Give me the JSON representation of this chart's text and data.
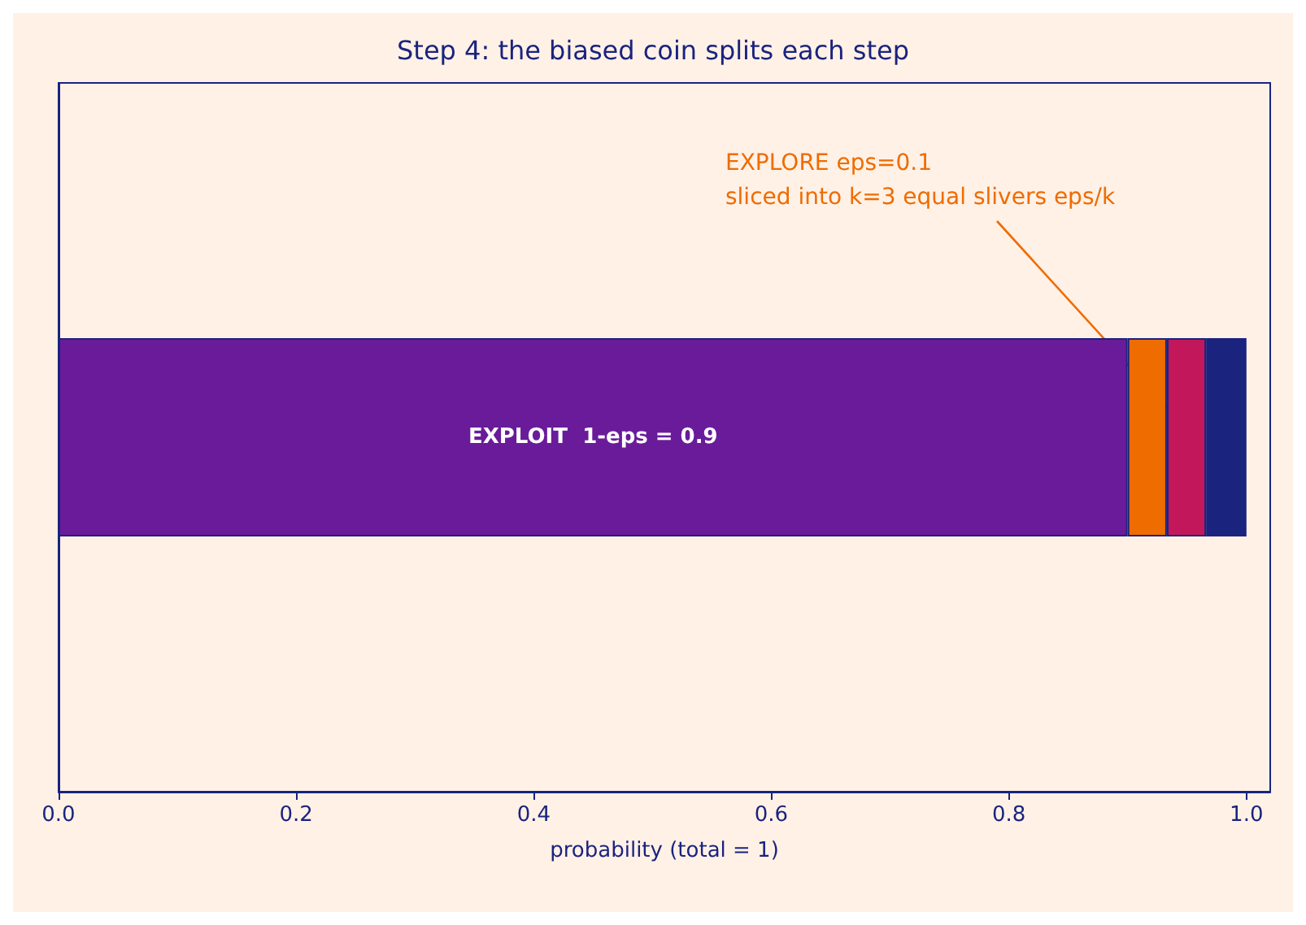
{
  "chart_data": {
    "type": "bar",
    "title": "Step 4: the biased coin splits each step",
    "xlabel": "probability (total = 1)",
    "orientation": "horizontal",
    "stacked": true,
    "categories": [
      null
    ],
    "series": [
      {
        "color": "#6a1b9a",
        "values": [
          0.9
        ],
        "value_labels": [
          "EXPLOIT  1-eps = 0.9"
        ]
      },
      {
        "color": "#ef6c00",
        "values": [
          0.033
        ]
      },
      {
        "color": "#c2185b",
        "values": [
          0.033
        ]
      },
      {
        "color": "#1a237e",
        "values": [
          0.034
        ]
      }
    ],
    "xlim": [
      0,
      1.02
    ],
    "xticks": [
      {
        "value": 0,
        "label": "0.0"
      },
      {
        "value": 0.2,
        "label": "0.2"
      },
      {
        "value": 0.4,
        "label": "0.4"
      },
      {
        "value": 0.6,
        "label": "0.6"
      },
      {
        "value": 0.8,
        "label": "0.8"
      },
      {
        "value": 1,
        "label": "1.0"
      }
    ],
    "annotations": [
      "EXPLORE eps=0.1\nsliced into k=3 equal slivers eps/k"
    ],
    "tick_labels": "x",
    "grid": false
  }
}
